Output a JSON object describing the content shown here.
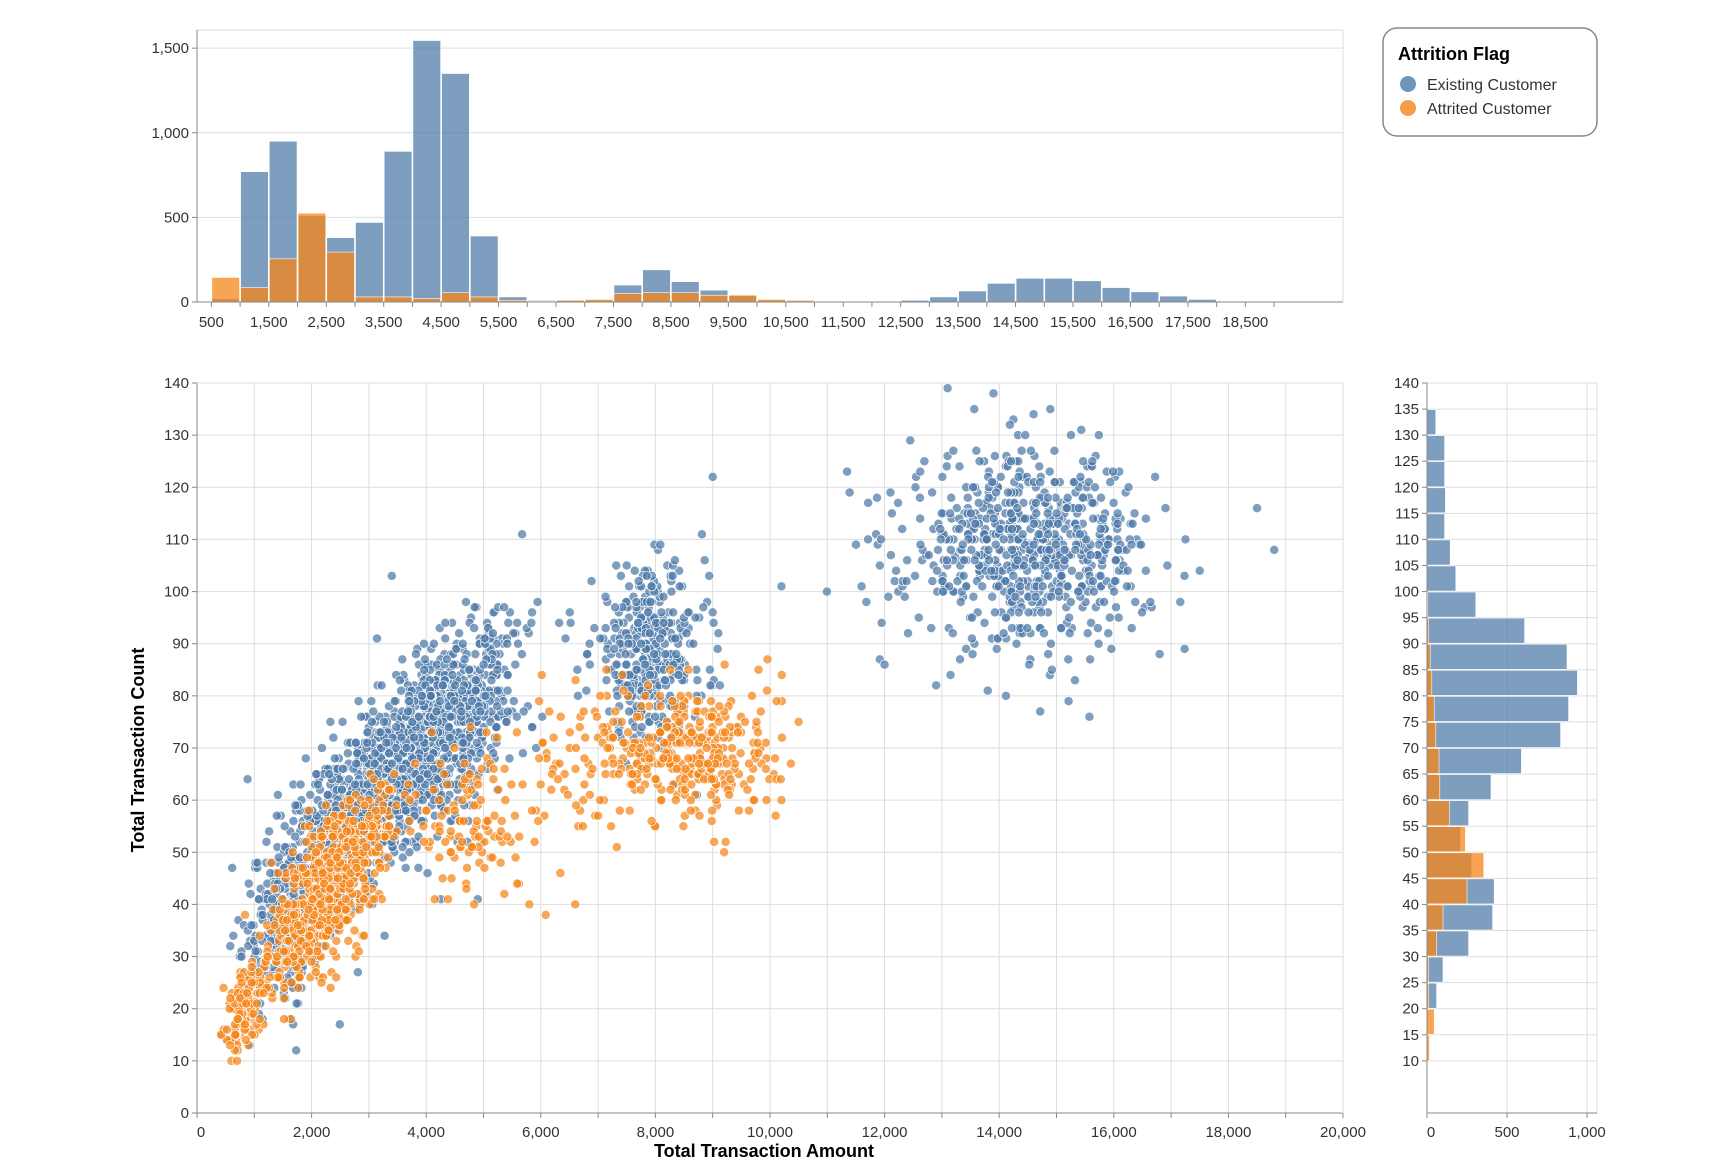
{
  "chart_data": [
    {
      "type": "bar",
      "name": "top-histogram",
      "stacking": "overlay",
      "x_tick_labels": [
        "500",
        "1,500",
        "2,500",
        "3,500",
        "4,500",
        "5,500",
        "6,500",
        "7,500",
        "8,500",
        "9,500",
        "10,500",
        "11,500",
        "12,500",
        "13,500",
        "14,500",
        "15,500",
        "16,500",
        "17,500",
        "18,500"
      ],
      "bin_width": 500,
      "bin_starts": [
        500,
        1000,
        1500,
        2000,
        2500,
        3000,
        3500,
        4000,
        4500,
        5000,
        5500,
        6000,
        6500,
        7000,
        7500,
        8000,
        8500,
        9000,
        9500,
        10000,
        10500,
        11000,
        11500,
        12000,
        12500,
        13000,
        13500,
        14000,
        14500,
        15000,
        15500,
        16000,
        16500,
        17000,
        17500,
        18000
      ],
      "series": [
        {
          "name": "Existing Customer",
          "color": "#4c78a8",
          "values": [
            20,
            770,
            950,
            510,
            380,
            470,
            890,
            1545,
            1350,
            390,
            30,
            10,
            10,
            10,
            100,
            190,
            120,
            70,
            40,
            10,
            5,
            0,
            0,
            0,
            10,
            30,
            65,
            110,
            140,
            140,
            125,
            85,
            60,
            35,
            15,
            5
          ]
        },
        {
          "name": "Attrited Customer",
          "color": "#f58518",
          "values": [
            145,
            85,
            255,
            525,
            295,
            30,
            30,
            20,
            55,
            30,
            10,
            5,
            10,
            15,
            50,
            55,
            55,
            40,
            40,
            15,
            10,
            0,
            0,
            0,
            0,
            0,
            0,
            0,
            0,
            0,
            0,
            0,
            0,
            0,
            0,
            0
          ]
        }
      ],
      "y_ticks": [
        0,
        500,
        1000,
        1500
      ],
      "y_tick_labels": [
        "0",
        "500",
        "1,000",
        "1,500"
      ],
      "ylim": [
        0,
        1560
      ],
      "xlim": [
        250,
        20200
      ],
      "grid": true
    },
    {
      "type": "scatter",
      "name": "main-scatter",
      "xlabel": "Total Transaction Amount",
      "ylabel": "Total Transaction Count",
      "xlim": [
        0,
        20000
      ],
      "ylim": [
        0,
        140
      ],
      "x_ticks": [
        0,
        2000,
        4000,
        6000,
        8000,
        10000,
        12000,
        14000,
        16000,
        18000,
        20000
      ],
      "x_tick_labels": [
        "0",
        "2,000",
        "4,000",
        "6,000",
        "8,000",
        "10,000",
        "12,000",
        "14,000",
        "16,000",
        "18,000",
        "20,000"
      ],
      "y_ticks": [
        0,
        10,
        20,
        30,
        40,
        50,
        60,
        70,
        80,
        90,
        100,
        110,
        120,
        130,
        140
      ],
      "y_tick_labels": [
        "0",
        "10",
        "20",
        "30",
        "40",
        "50",
        "60",
        "70",
        "80",
        "90",
        "100",
        "110",
        "120",
        "130",
        "140"
      ],
      "grid": true,
      "series": [
        {
          "name": "Existing Customer",
          "color": "#4c78a8",
          "clusters": [
            {
              "cx": 4100,
              "cy": 72,
              "sx": 800,
              "sy": 10,
              "n": 950
            },
            {
              "cx": 2700,
              "cy": 58,
              "sx": 600,
              "sy": 9,
              "n": 450
            },
            {
              "cx": 1600,
              "cy": 38,
              "sx": 380,
              "sy": 11,
              "n": 280
            },
            {
              "cx": 7900,
              "cy": 88,
              "sx": 500,
              "sy": 8,
              "n": 380
            },
            {
              "cx": 14500,
              "cy": 108,
              "sx": 1050,
              "sy": 9,
              "n": 700
            }
          ],
          "extra_points": [
            [
              13100,
              139
            ],
            [
              13900,
              138
            ],
            [
              14600,
              134
            ],
            [
              13200,
              127
            ],
            [
              12200,
              104
            ],
            [
              12900,
              82
            ],
            [
              11500,
              109
            ],
            [
              18800,
              108
            ],
            [
              18500,
              116
            ],
            [
              17500,
              104
            ],
            [
              13800,
              81
            ],
            [
              16800,
              88
            ],
            [
              3400,
              103
            ],
            [
              9000,
              122
            ],
            [
              4900,
              41
            ],
            [
              10200,
              101
            ]
          ]
        },
        {
          "name": "Attrited Customer",
          "color": "#f58518",
          "clusters": [
            {
              "cx": 2300,
              "cy": 43,
              "sx": 550,
              "sy": 8,
              "n": 620
            },
            {
              "cx": 800,
              "cy": 20,
              "sx": 220,
              "sy": 5,
              "n": 120
            },
            {
              "cx": 8600,
              "cy": 69,
              "sx": 800,
              "sy": 7,
              "n": 330
            },
            {
              "cx": 4800,
              "cy": 56,
              "sx": 450,
              "sy": 8,
              "n": 110
            },
            {
              "cx": 6500,
              "cy": 66,
              "sx": 600,
              "sy": 8,
              "n": 50
            }
          ],
          "extra_points": [
            [
              5800,
              40
            ],
            [
              6600,
              40
            ],
            [
              9200,
              50
            ],
            [
              10500,
              75
            ],
            [
              10200,
              60
            ],
            [
              9800,
              85
            ],
            [
              600,
              10
            ],
            [
              700,
              10
            ]
          ]
        }
      ]
    },
    {
      "type": "bar",
      "name": "right-histogram",
      "orientation": "horizontal",
      "stacking": "overlay",
      "bin_width": 5,
      "bin_starts": [
        10,
        15,
        20,
        25,
        30,
        35,
        40,
        45,
        50,
        55,
        60,
        65,
        70,
        75,
        80,
        85,
        90,
        95,
        100,
        105,
        110,
        115,
        120,
        125,
        130,
        135
      ],
      "series": [
        {
          "name": "Existing Customer",
          "color": "#4c78a8",
          "values": [
            0,
            5,
            60,
            100,
            260,
            410,
            420,
            280,
            210,
            260,
            400,
            590,
            835,
            885,
            940,
            875,
            610,
            305,
            180,
            145,
            110,
            115,
            110,
            110,
            55,
            5
          ]
        },
        {
          "name": "Attrited Customer",
          "color": "#f58518",
          "values": [
            15,
            45,
            10,
            10,
            60,
            100,
            250,
            355,
            240,
            140,
            80,
            75,
            55,
            45,
            30,
            20,
            10,
            5,
            0,
            0,
            0,
            0,
            0,
            0,
            0,
            0
          ]
        }
      ],
      "x_ticks": [
        0,
        500,
        1000
      ],
      "x_tick_labels": [
        "0",
        "500",
        "1,000"
      ],
      "xlim": [
        0,
        1000
      ],
      "ylim": [
        0,
        140
      ],
      "y_ticks": [
        10,
        15,
        20,
        25,
        30,
        35,
        40,
        45,
        50,
        55,
        60,
        65,
        70,
        75,
        80,
        85,
        90,
        95,
        100,
        105,
        110,
        115,
        120,
        125,
        130,
        135,
        140
      ],
      "y_tick_labels": [
        "10",
        "15",
        "20",
        "25",
        "30",
        "35",
        "40",
        "45",
        "50",
        "55",
        "60",
        "65",
        "70",
        "75",
        "80",
        "85",
        "90",
        "95",
        "100",
        "105",
        "110",
        "115",
        "120",
        "125",
        "130",
        "135",
        "140"
      ],
      "grid": true
    }
  ],
  "legend": {
    "title": "Attrition Flag",
    "placement": "top-right",
    "items": [
      {
        "label": "Existing Customer",
        "color": "#4c78a8"
      },
      {
        "label": "Attrited Customer",
        "color": "#f58518"
      }
    ]
  }
}
